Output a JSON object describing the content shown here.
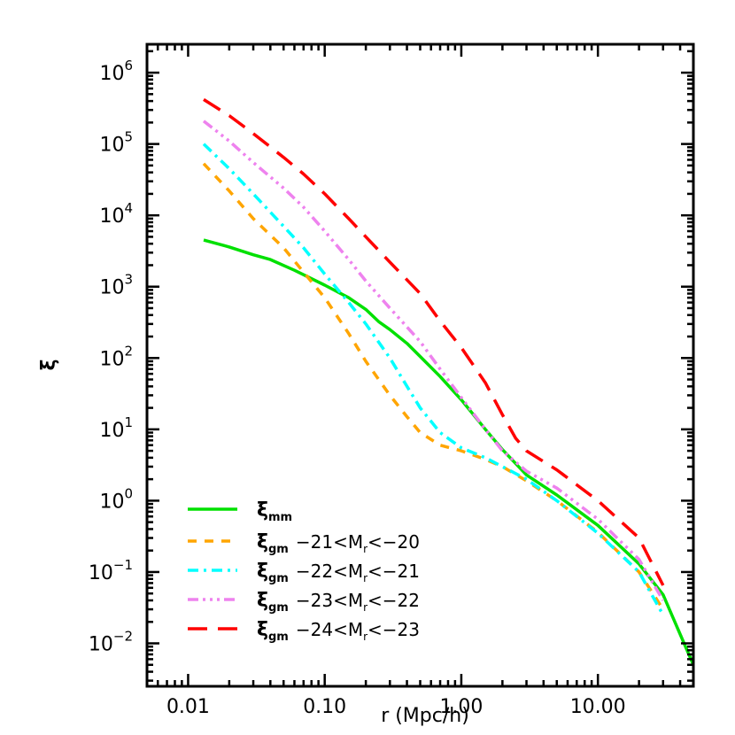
{
  "chart_data": {
    "type": "line",
    "title": "",
    "xlabel": "r (Mpc/h)",
    "ylabel": "ξ",
    "xscale": "log",
    "yscale": "log",
    "xlim": [
      0.005,
      50
    ],
    "ylim": [
      0.0025,
      2500000
    ],
    "x_ticks": [
      0.01,
      0.1,
      1,
      10
    ],
    "x_tick_labels": [
      "0.01",
      "0.10",
      "1.00",
      "10.00"
    ],
    "y_ticks": [
      0.01,
      0.1,
      1,
      10,
      100,
      1000,
      10000,
      100000,
      1000000
    ],
    "y_tick_labels": [
      {
        "base": "10",
        "exp": "-2"
      },
      {
        "base": "10",
        "exp": "-1"
      },
      {
        "base": "10",
        "exp": "0"
      },
      {
        "base": "10",
        "exp": "1"
      },
      {
        "base": "10",
        "exp": "2"
      },
      {
        "base": "10",
        "exp": "3"
      },
      {
        "base": "10",
        "exp": "4"
      },
      {
        "base": "10",
        "exp": "5"
      },
      {
        "base": "10",
        "exp": "6"
      }
    ],
    "grid": false,
    "legend_position": "lower left",
    "series": [
      {
        "name": "ξmm",
        "label_main": "ξ",
        "label_sub": "mm",
        "label_range": "",
        "color": "#00e000",
        "dash": "",
        "x": [
          0.013,
          0.02,
          0.03,
          0.04,
          0.06,
          0.1,
          0.15,
          0.2,
          0.25,
          0.3,
          0.4,
          0.5,
          0.7,
          1.0,
          1.5,
          2.0,
          3.0,
          5.0,
          10.0,
          20.0,
          30.0,
          50.0
        ],
        "values": [
          4500,
          3600,
          2800,
          2400,
          1700,
          1050,
          700,
          480,
          320,
          250,
          160,
          105,
          55,
          26,
          10,
          5.2,
          2.3,
          1.2,
          0.45,
          0.13,
          0.048,
          0.005
        ]
      },
      {
        "name": "ξgm -21<Mr<-20",
        "label_main": "ξ",
        "label_sub": "gm",
        "label_range": "−21<Mr<−20",
        "color": "#ffa500",
        "dash": "10,9",
        "x": [
          0.013,
          0.02,
          0.03,
          0.05,
          0.07,
          0.1,
          0.15,
          0.2,
          0.3,
          0.4,
          0.5,
          0.7,
          1.0,
          1.5,
          2.0,
          3.0,
          5.0,
          10.0,
          20.0,
          30.0
        ],
        "values": [
          53000,
          22000,
          9000,
          3500,
          1600,
          700,
          220,
          90,
          30,
          15,
          9,
          6,
          5,
          3.8,
          3.0,
          1.9,
          1.0,
          0.36,
          0.1,
          0.03
        ]
      },
      {
        "name": "ξgm -22<Mr<-21",
        "label_main": "ξ",
        "label_sub": "gm",
        "label_range": "−22<Mr<−21",
        "color": "#00ffff",
        "dash": "12,6,3,6",
        "x": [
          0.013,
          0.02,
          0.03,
          0.05,
          0.07,
          0.1,
          0.15,
          0.2,
          0.3,
          0.4,
          0.5,
          0.7,
          1.0,
          1.5,
          2.0,
          3.0,
          5.0,
          10.0,
          20.0,
          30.0
        ],
        "values": [
          100000,
          45000,
          20000,
          7000,
          3500,
          1500,
          600,
          300,
          100,
          40,
          20,
          9,
          5.5,
          4.0,
          3.0,
          2.0,
          1.0,
          0.35,
          0.1,
          0.025
        ]
      },
      {
        "name": "ξgm -23<Mr<-22",
        "label_main": "ξ",
        "label_sub": "gm",
        "label_range": "−23<Mr<−22",
        "color": "#ee82ee",
        "dash": "12,5,3,5,3,5,3,5",
        "x": [
          0.013,
          0.02,
          0.03,
          0.05,
          0.07,
          0.1,
          0.15,
          0.2,
          0.3,
          0.5,
          0.7,
          1.0,
          1.5,
          2.0,
          3.0,
          5.0,
          10.0,
          20.0,
          30.0
        ],
        "values": [
          210000,
          110000,
          55000,
          24000,
          13000,
          6000,
          2400,
          1200,
          500,
          170,
          70,
          28,
          10,
          5,
          2.6,
          1.5,
          0.55,
          0.15,
          0.04
        ]
      },
      {
        "name": "ξgm -24<Mr<-23",
        "label_main": "ξ",
        "label_sub": "gm",
        "label_range": "−24<Mr<−23",
        "color": "#ff0000",
        "dash": "22,12",
        "x": [
          0.013,
          0.02,
          0.03,
          0.05,
          0.07,
          0.1,
          0.15,
          0.2,
          0.3,
          0.5,
          0.7,
          1.0,
          1.5,
          2.0,
          2.5,
          3.0,
          5.0,
          10.0,
          20.0,
          30.0
        ],
        "values": [
          420000,
          250000,
          140000,
          65000,
          38000,
          20000,
          9000,
          5000,
          2200,
          800,
          330,
          140,
          45,
          16,
          7.5,
          5,
          2.7,
          1.0,
          0.3,
          0.065
        ]
      }
    ]
  }
}
